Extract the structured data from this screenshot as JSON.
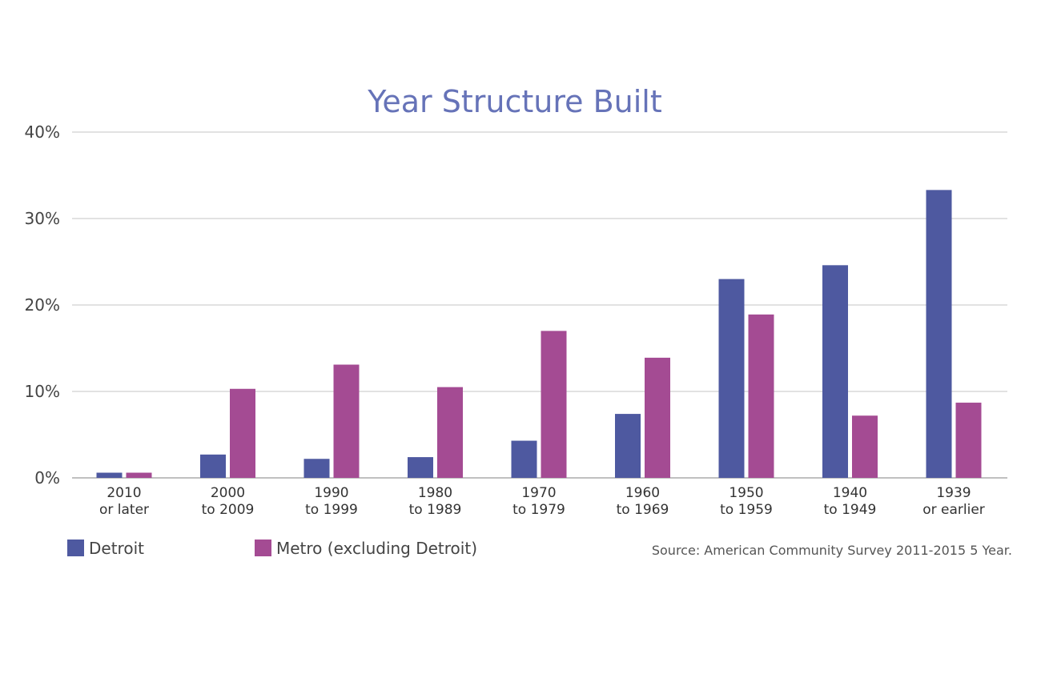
{
  "chart_data": {
    "type": "bar",
    "title": "Year Structure Built",
    "categories": [
      [
        "2010",
        "or later"
      ],
      [
        "2000",
        "to 2009"
      ],
      [
        "1990",
        "to 1999"
      ],
      [
        "1980",
        "to 1989"
      ],
      [
        "1970",
        "to 1979"
      ],
      [
        "1960",
        "to 1969"
      ],
      [
        "1950",
        "to 1959"
      ],
      [
        "1940",
        "to 1949"
      ],
      [
        "1939",
        "or earlier"
      ]
    ],
    "series": [
      {
        "name": "Detroit",
        "color": "#4e59a0",
        "values": [
          0.6,
          2.7,
          2.2,
          2.4,
          4.3,
          7.4,
          23.0,
          24.6,
          33.3
        ]
      },
      {
        "name": "Metro (excluding Detroit)",
        "color": "#a44b93",
        "values": [
          0.6,
          10.3,
          13.1,
          10.5,
          17.0,
          13.9,
          18.9,
          7.2,
          8.7
        ]
      }
    ],
    "ylim": [
      0,
      40
    ],
    "yticks": [
      0,
      10,
      20,
      30,
      40
    ],
    "ytick_labels": [
      "0%",
      "10%",
      "20%",
      "30%",
      "40%"
    ],
    "grid": true,
    "legend_placement": "bottom-left"
  },
  "source_note": "Source: American Community Survey 2011-2015 5 Year."
}
